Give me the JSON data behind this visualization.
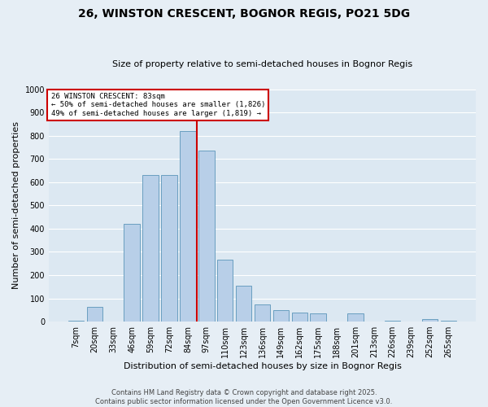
{
  "title1": "26, WINSTON CRESCENT, BOGNOR REGIS, PO21 5DG",
  "title2": "Size of property relative to semi-detached houses in Bognor Regis",
  "xlabel": "Distribution of semi-detached houses by size in Bognor Regis",
  "ylabel": "Number of semi-detached properties",
  "categories": [
    "7sqm",
    "20sqm",
    "33sqm",
    "46sqm",
    "59sqm",
    "72sqm",
    "84sqm",
    "97sqm",
    "110sqm",
    "123sqm",
    "136sqm",
    "149sqm",
    "162sqm",
    "175sqm",
    "188sqm",
    "201sqm",
    "213sqm",
    "226sqm",
    "239sqm",
    "252sqm",
    "265sqm"
  ],
  "values": [
    5,
    65,
    2,
    420,
    630,
    630,
    820,
    735,
    265,
    155,
    75,
    50,
    40,
    35,
    2,
    35,
    2,
    5,
    2,
    10,
    5
  ],
  "bar_color": "#b8cfe8",
  "bar_edge_color": "#6a9fc0",
  "vline_color": "#cc0000",
  "vline_pos": 6.48,
  "annotation_title": "26 WINSTON CRESCENT: 83sqm",
  "annotation_line1": "← 50% of semi-detached houses are smaller (1,826)",
  "annotation_line2": "49% of semi-detached houses are larger (1,819) →",
  "annotation_box_color": "#ffffff",
  "annotation_box_edge": "#cc0000",
  "ylim": [
    0,
    1000
  ],
  "yticks": [
    0,
    100,
    200,
    300,
    400,
    500,
    600,
    700,
    800,
    900,
    1000
  ],
  "footer1": "Contains HM Land Registry data © Crown copyright and database right 2025.",
  "footer2": "Contains public sector information licensed under the Open Government Licence v3.0.",
  "bg_color": "#e6eef5",
  "plot_bg_color": "#dce8f2",
  "grid_color": "#ffffff",
  "title1_fontsize": 10,
  "title2_fontsize": 8,
  "xlabel_fontsize": 8,
  "ylabel_fontsize": 8,
  "tick_fontsize": 7,
  "footer_fontsize": 6
}
